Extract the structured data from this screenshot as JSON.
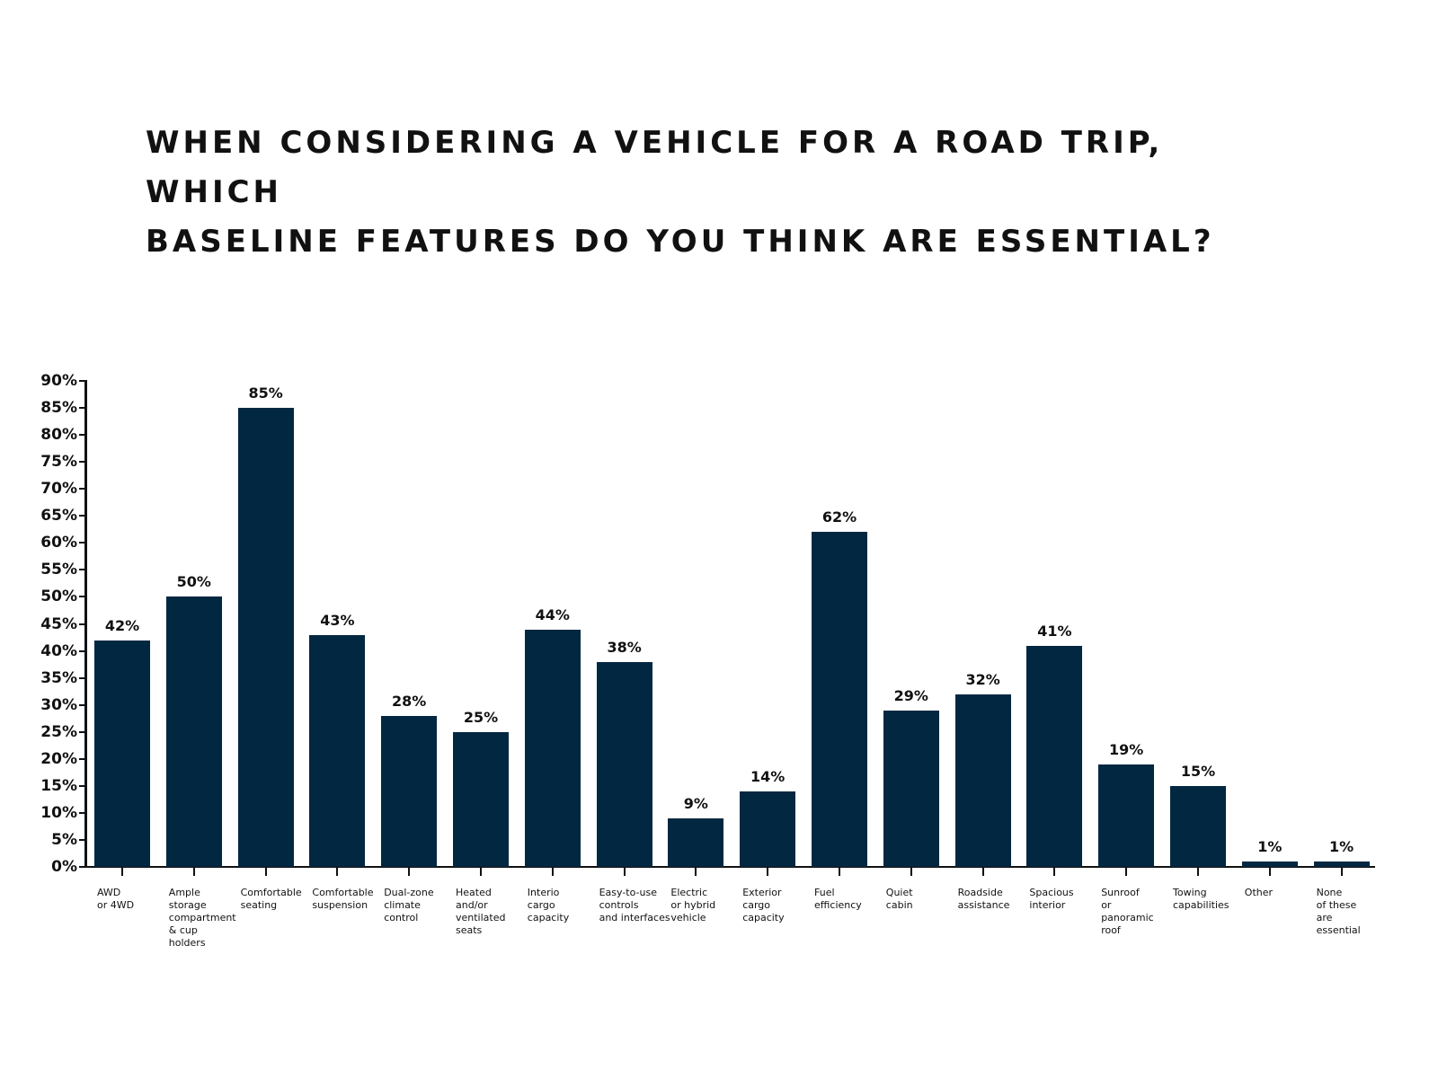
{
  "title": {
    "line1": "WHEN CONSIDERING A VEHICLE FOR A ROAD TRIP, WHICH",
    "line2": "BASELINE FEATURES DO YOU THINK ARE ESSENTIAL?"
  },
  "colors": {
    "bar": "#022741",
    "text": "#111111",
    "background": "#ffffff"
  },
  "chart_data": {
    "type": "bar",
    "title": "WHEN CONSIDERING A VEHICLE FOR A ROAD TRIP, WHICH BASELINE FEATURES DO YOU THINK ARE ESSENTIAL?",
    "xlabel": "",
    "ylabel": "",
    "ylim": [
      0,
      90
    ],
    "yticks": [
      "0%",
      "5%",
      "10%",
      "15%",
      "20%",
      "25%",
      "30%",
      "35%",
      "40%",
      "45%",
      "50%",
      "55%",
      "60%",
      "65%",
      "70%",
      "75%",
      "80%",
      "85%",
      "90%"
    ],
    "grid": false,
    "legend": null,
    "categories": [
      "AWD\nor 4WD",
      "Ample\nstorage\ncompartment\n& cup\nholders",
      "Comfortable\nseating",
      "Comfortable\nsuspension",
      "Dual-zone\nclimate\ncontrol",
      "Heated\nand/or\nventilated\nseats",
      "Interio\ncargo\ncapacity",
      "Easy-to-use\ncontrols\nand interfaces",
      "Electric\nor hybrid\nvehicle",
      "Exterior\ncargo\ncapacity",
      "Fuel\nefficiency",
      "Quiet\ncabin",
      "Roadside\nassistance",
      "Spacious\ninterior",
      "Sunroof\nor\npanoramic\nroof",
      "Towing\ncapabilities",
      "Other",
      "None\nof these\nare\nessential"
    ],
    "values": [
      42,
      50,
      85,
      43,
      28,
      25,
      44,
      38,
      9,
      14,
      62,
      29,
      32,
      41,
      19,
      15,
      1,
      1
    ],
    "value_labels": [
      "42%",
      "50%",
      "85%",
      "43%",
      "28%",
      "25%",
      "44%",
      "38%",
      "9%",
      "14%",
      "62%",
      "29%",
      "32%",
      "41%",
      "19%",
      "15%",
      "1%",
      "1%"
    ]
  }
}
